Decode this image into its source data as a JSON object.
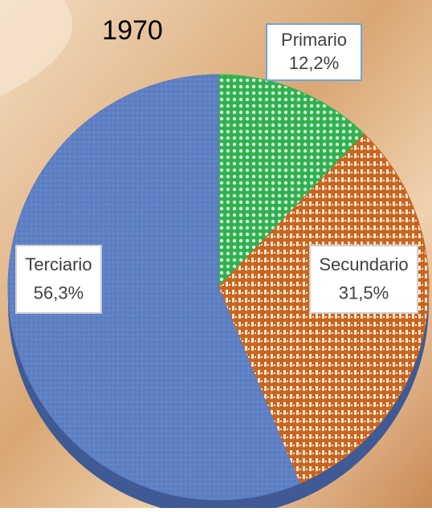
{
  "chart_data": {
    "type": "pie",
    "title": "1970",
    "categories": [
      "Primario",
      "Secundario",
      "Terciario"
    ],
    "values": [
      12.2,
      31.5,
      56.3
    ],
    "value_labels": [
      "12,2%",
      "31,5%",
      "56,3%"
    ],
    "colors": [
      "#2fb14e",
      "#c9651f",
      "#5a7cc0"
    ]
  }
}
